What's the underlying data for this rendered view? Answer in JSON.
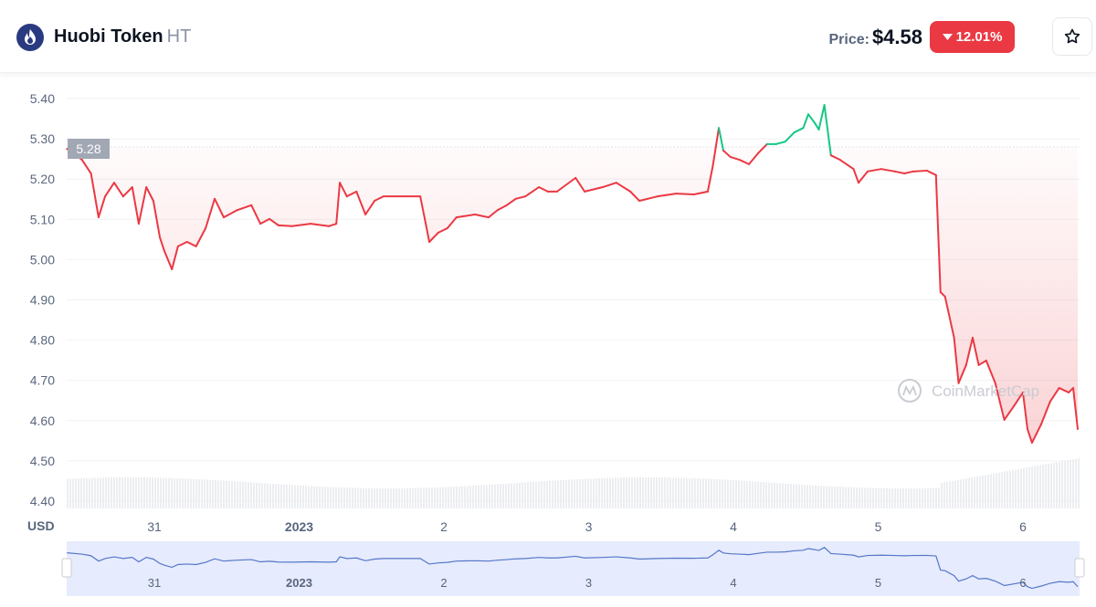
{
  "header": {
    "name": "Huobi Token",
    "symbol": "HT",
    "price_label": "Price:",
    "price": "$4.58",
    "change": "12.01%",
    "change_direction": "down",
    "star_icon": "star-icon",
    "logo_icon": "huobi-flame-icon"
  },
  "colors": {
    "down": "#ea3943",
    "up": "#16c784",
    "navigator": "#3861fb"
  },
  "chart_data": {
    "type": "line",
    "ylabel": "USD",
    "ylim": [
      4.4,
      5.4
    ],
    "yticks": [
      "5.40",
      "5.30",
      "5.20",
      "5.10",
      "5.00",
      "4.90",
      "4.80",
      "4.70",
      "4.60",
      "4.50",
      "4.40"
    ],
    "xticks": [
      "31",
      "2023",
      "2",
      "3",
      "4",
      "5",
      "6"
    ],
    "navigator_xticks": [
      "31",
      "2023",
      "2",
      "3",
      "4",
      "5",
      "6"
    ],
    "reference_price": "5.28",
    "watermark": "CoinMarketCap",
    "grid": "horizontal",
    "series": [
      {
        "x": [
          "2022-12-30 09:30",
          "2022-12-30 12:00",
          "2022-12-30 13:30",
          "2022-12-30 14:45",
          "2022-12-30 15:50",
          "2022-12-30 17:20",
          "2022-12-30 18:50",
          "2022-12-30 20:20",
          "2022-12-30 21:25",
          "2022-12-30 22:40",
          "2022-12-30 23:50",
          "2022-12-31 00:55",
          "2022-12-31 01:40",
          "2022-12-31 02:55",
          "2022-12-31 03:55",
          "2022-12-31 05:25",
          "2022-12-31 06:55",
          "2022-12-31 08:30",
          "2022-12-31 10:00",
          "2022-12-31 11:30",
          "2022-12-31 13:45",
          "2022-12-31 16:05",
          "2022-12-31 17:35",
          "2022-12-31 19:05",
          "2022-12-31 20:35",
          "2022-12-31 22:50",
          "2023-01-01 01:55",
          "2023-01-01 04:55",
          "2023-01-01 06:10",
          "2023-01-01 06:45",
          "2023-01-01 07:55",
          "2023-01-01 09:30",
          "2023-01-01 11:00",
          "2023-01-01 12:30",
          "2023-01-01 14:00",
          "2023-01-01 17:00",
          "2023-01-01 20:05",
          "2023-01-01 20:50",
          "2023-01-01 21:35",
          "2023-01-01 23:05",
          "2023-01-02 00:35",
          "2023-01-02 02:05",
          "2023-01-02 05:10",
          "2023-01-02 07:25",
          "2023-01-02 08:55",
          "2023-01-02 10:25",
          "2023-01-02 11:55",
          "2023-01-02 13:30",
          "2023-01-02 15:45",
          "2023-01-02 17:15",
          "2023-01-02 18:45",
          "2023-01-02 21:50",
          "2023-01-02 23:20",
          "2023-01-03 02:20",
          "2023-01-03 04:35",
          "2023-01-03 06:55",
          "2023-01-03 08:25",
          "2023-01-03 11:25",
          "2023-01-03 14:30",
          "2023-01-03 17:30",
          "2023-01-03 19:45",
          "2023-01-03 20:35",
          "2023-01-03 21:35",
          "2023-01-03 22:20",
          "2023-01-03 23:30",
          "2023-01-04 01:00",
          "2023-01-04 02:35",
          "2023-01-04 04:05",
          "2023-01-04 05:35",
          "2023-01-04 07:05",
          "2023-01-04 08:35",
          "2023-01-04 10:05",
          "2023-01-04 11:35",
          "2023-01-04 12:25",
          "2023-01-04 13:30",
          "2023-01-04 14:10",
          "2023-01-04 15:05",
          "2023-01-04 16:10",
          "2023-01-04 17:40",
          "2023-01-04 19:55",
          "2023-01-04 20:45",
          "2023-01-04 22:15",
          "2023-01-05 00:30",
          "2023-01-05 02:45",
          "2023-01-05 04:20",
          "2023-01-05 05:50",
          "2023-01-05 08:05",
          "2023-01-05 09:35",
          "2023-01-05 10:20",
          "2023-01-05 11:05",
          "2023-01-05 12:35",
          "2023-01-05 13:20",
          "2023-01-05 14:35",
          "2023-01-05 15:40",
          "2023-01-05 16:40",
          "2023-01-05 17:55",
          "2023-01-05 19:25",
          "2023-01-05 20:10",
          "2023-01-05 20:55",
          "2023-01-05 22:30",
          "2023-01-06 00:00",
          "2023-01-06 00:45",
          "2023-01-06 01:30",
          "2023-01-06 03:00",
          "2023-01-06 04:30",
          "2023-01-06 06:00",
          "2023-01-06 07:35",
          "2023-01-06 08:20",
          "2023-01-06 09:05"
        ],
        "y": [
          5.275,
          5.248,
          5.214,
          5.105,
          5.157,
          5.191,
          5.157,
          5.18,
          5.089,
          5.18,
          5.146,
          5.055,
          5.021,
          4.976,
          5.033,
          5.044,
          5.033,
          5.078,
          5.151,
          5.105,
          5.123,
          5.135,
          5.089,
          5.101,
          5.085,
          5.083,
          5.089,
          5.083,
          5.089,
          5.191,
          5.157,
          5.169,
          5.112,
          5.146,
          5.157,
          5.157,
          5.157,
          5.101,
          5.044,
          5.067,
          5.078,
          5.105,
          5.112,
          5.105,
          5.123,
          5.135,
          5.151,
          5.157,
          5.18,
          5.169,
          5.169,
          5.203,
          5.169,
          5.18,
          5.191,
          5.169,
          5.146,
          5.157,
          5.164,
          5.162,
          5.169,
          5.232,
          5.327,
          5.271,
          5.255,
          5.248,
          5.237,
          5.264,
          5.287,
          5.287,
          5.293,
          5.316,
          5.327,
          5.361,
          5.339,
          5.323,
          5.384,
          5.259,
          5.248,
          5.225,
          5.191,
          5.219,
          5.225,
          5.219,
          5.214,
          5.219,
          5.221,
          5.21,
          4.919,
          4.908,
          4.806,
          4.693,
          4.738,
          4.806,
          4.738,
          4.749,
          4.693,
          4.647,
          4.602,
          4.636,
          4.67,
          4.579,
          4.545,
          4.59,
          4.647,
          4.681,
          4.67,
          4.681,
          4.579
        ]
      }
    ]
  }
}
